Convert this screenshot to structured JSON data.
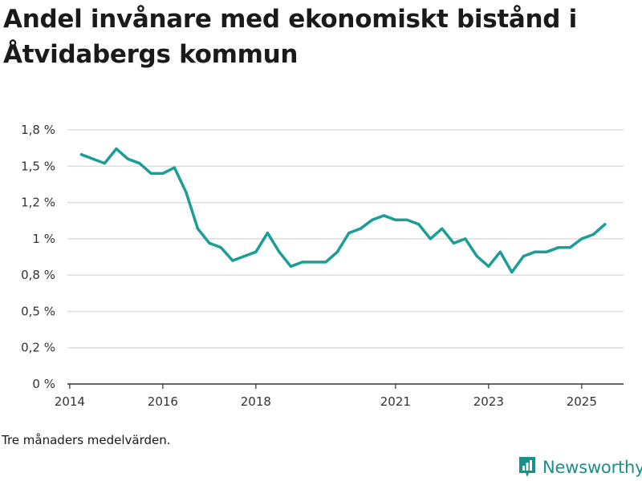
{
  "title": "Andel invånare med ekonomiskt bistånd i Åtvidabergs kommun",
  "note": "Tre månaders medelvärden.",
  "brand": {
    "name": "Newsworthy"
  },
  "colors": {
    "line": "#1a9e96",
    "grid": "#dddddd",
    "axis": "#333333",
    "brand": "#1b8f8a"
  },
  "chart_data": {
    "type": "line",
    "title": "Andel invånare med ekonomiskt bistånd i Åtvidabergs kommun",
    "xlabel": "",
    "ylabel": "",
    "grid": true,
    "xlim": [
      2013.95,
      2025.9
    ],
    "ylim": [
      0,
      1.8
    ],
    "y_ticks": [
      {
        "value": 0,
        "label": "0 %"
      },
      {
        "value": 0.25,
        "label": "0,2 %"
      },
      {
        "value": 0.5,
        "label": "0,5 %"
      },
      {
        "value": 0.75,
        "label": "0,8 %"
      },
      {
        "value": 1.0,
        "label": "1 %"
      },
      {
        "value": 1.25,
        "label": "1,2 %"
      },
      {
        "value": 1.5,
        "label": "1,5 %"
      },
      {
        "value": 1.75,
        "label": "1,8 %"
      }
    ],
    "x_ticks": [
      {
        "value": 2014,
        "label": "2014"
      },
      {
        "value": 2016,
        "label": "2016"
      },
      {
        "value": 2018,
        "label": "2018"
      },
      {
        "value": 2021,
        "label": "2021"
      },
      {
        "value": 2023,
        "label": "2023"
      },
      {
        "value": 2025,
        "label": "2025"
      }
    ],
    "series": [
      {
        "name": "Andel invånare med ekonomiskt bistånd",
        "points": [
          [
            2014.25,
            1.58
          ],
          [
            2014.5,
            1.55
          ],
          [
            2014.75,
            1.52
          ],
          [
            2015.0,
            1.62
          ],
          [
            2015.25,
            1.55
          ],
          [
            2015.5,
            1.52
          ],
          [
            2015.75,
            1.45
          ],
          [
            2016.0,
            1.45
          ],
          [
            2016.25,
            1.49
          ],
          [
            2016.5,
            1.32
          ],
          [
            2016.75,
            1.07
          ],
          [
            2017.0,
            0.97
          ],
          [
            2017.25,
            0.94
          ],
          [
            2017.5,
            0.85
          ],
          [
            2017.75,
            0.88
          ],
          [
            2018.0,
            0.91
          ],
          [
            2018.25,
            1.04
          ],
          [
            2018.5,
            0.91
          ],
          [
            2018.75,
            0.81
          ],
          [
            2019.0,
            0.84
          ],
          [
            2019.25,
            0.84
          ],
          [
            2019.5,
            0.84
          ],
          [
            2019.75,
            0.91
          ],
          [
            2020.0,
            1.04
          ],
          [
            2020.25,
            1.07
          ],
          [
            2020.5,
            1.13
          ],
          [
            2020.75,
            1.16
          ],
          [
            2021.0,
            1.13
          ],
          [
            2021.25,
            1.13
          ],
          [
            2021.5,
            1.1
          ],
          [
            2021.75,
            1.0
          ],
          [
            2022.0,
            1.07
          ],
          [
            2022.25,
            0.97
          ],
          [
            2022.5,
            1.0
          ],
          [
            2022.75,
            0.88
          ],
          [
            2023.0,
            0.81
          ],
          [
            2023.25,
            0.91
          ],
          [
            2023.5,
            0.77
          ],
          [
            2023.75,
            0.88
          ],
          [
            2024.0,
            0.91
          ],
          [
            2024.25,
            0.91
          ],
          [
            2024.5,
            0.94
          ],
          [
            2024.75,
            0.94
          ],
          [
            2025.0,
            1.0
          ],
          [
            2025.25,
            1.03
          ],
          [
            2025.5,
            1.1
          ]
        ]
      }
    ]
  }
}
